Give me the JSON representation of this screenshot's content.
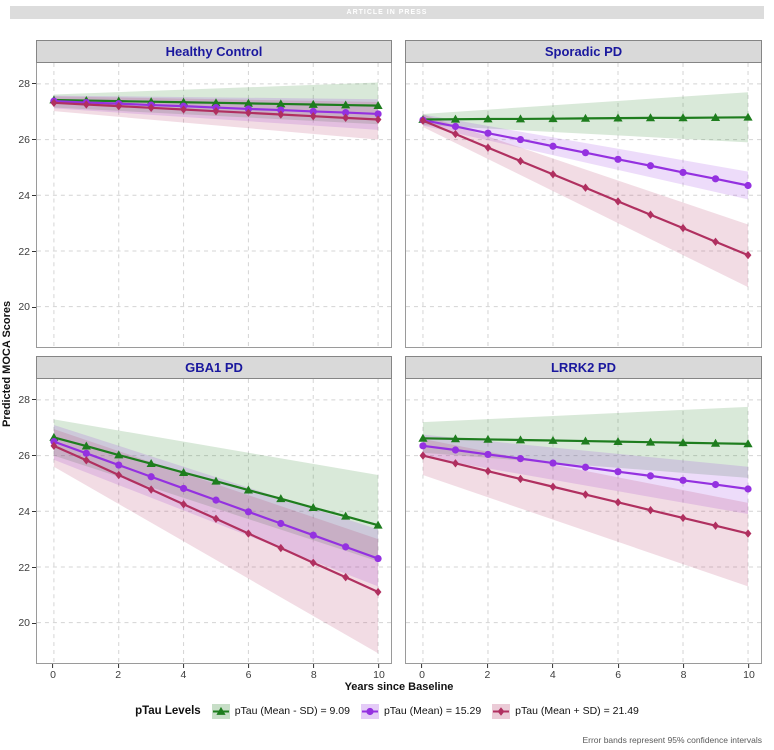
{
  "page": {
    "banner": "ARTICLE IN PRESS",
    "footnote": "Error bands represent 95% confidence intervals"
  },
  "chart_data": {
    "type": "line",
    "x": [
      0,
      1,
      2,
      3,
      4,
      5,
      6,
      7,
      8,
      9,
      10
    ],
    "xticks": [
      0,
      2,
      4,
      6,
      8,
      10
    ],
    "yticks": [
      20,
      22,
      24,
      26,
      28
    ],
    "ylim": [
      18.55,
      28.75
    ],
    "xlabel": "Years since Baseline",
    "ylabel": "Predicted MOCA Scores",
    "legend_title": "pTau Levels",
    "legend_position": "bottom",
    "grid": "dashed",
    "band_note": "Error bands represent 95% confidence intervals",
    "series_meta": [
      {
        "label": "pTau (Mean - SD) = 9.09",
        "color": "#1e7d1e",
        "marker": "triangle"
      },
      {
        "label": "pTau (Mean) = 15.29",
        "color": "#9431e0",
        "marker": "circle"
      },
      {
        "label": "pTau (Mean + SD) = 21.49",
        "color": "#b03060",
        "marker": "diamond"
      }
    ],
    "panels": [
      {
        "title": "Healthy Control",
        "series": [
          {
            "values": [
              27.42,
              27.4,
              27.38,
              27.36,
              27.34,
              27.32,
              27.3,
              27.28,
              27.26,
              27.24,
              27.22
            ],
            "band_start": [
              27.15,
              27.62
            ],
            "band_end": [
              26.55,
              28.05
            ]
          },
          {
            "values": [
              27.38,
              27.33,
              27.29,
              27.24,
              27.2,
              27.15,
              27.1,
              27.06,
              27.01,
              26.97,
              26.92
            ],
            "band_start": [
              27.12,
              27.58
            ],
            "band_end": [
              26.35,
              27.45
            ]
          },
          {
            "values": [
              27.32,
              27.26,
              27.2,
              27.14,
              27.08,
              27.02,
              26.96,
              26.9,
              26.84,
              26.78,
              26.72
            ],
            "band_start": [
              27.02,
              27.55
            ],
            "band_end": [
              26.0,
              27.35
            ]
          }
        ]
      },
      {
        "title": "Sporadic PD",
        "series": [
          {
            "values": [
              26.72,
              26.73,
              26.74,
              26.74,
              26.75,
              26.76,
              26.77,
              26.78,
              26.78,
              26.79,
              26.8
            ],
            "band_start": [
              26.52,
              26.92
            ],
            "band_end": [
              25.9,
              27.7
            ]
          },
          {
            "values": [
              26.7,
              26.47,
              26.23,
              26.0,
              25.76,
              25.53,
              25.29,
              25.06,
              24.82,
              24.59,
              24.35
            ],
            "band_start": [
              26.5,
              26.9
            ],
            "band_end": [
              23.85,
              24.85
            ]
          },
          {
            "values": [
              26.68,
              26.2,
              25.71,
              25.23,
              24.75,
              24.27,
              23.78,
              23.3,
              22.82,
              22.33,
              21.85
            ],
            "band_start": [
              26.45,
              26.9
            ],
            "band_end": [
              20.7,
              22.95
            ]
          }
        ]
      },
      {
        "title": "GBA1 PD",
        "series": [
          {
            "values": [
              26.65,
              26.34,
              26.02,
              25.71,
              25.39,
              25.08,
              24.76,
              24.45,
              24.13,
              23.82,
              23.5
            ],
            "band_start": [
              26.0,
              27.3
            ],
            "band_end": [
              22.2,
              25.3
            ]
          },
          {
            "values": [
              26.5,
              26.08,
              25.66,
              25.24,
              24.82,
              24.4,
              23.98,
              23.56,
              23.14,
              22.72,
              22.3
            ],
            "band_start": [
              25.85,
              27.1
            ],
            "band_end": [
              21.3,
              23.35
            ]
          },
          {
            "values": [
              26.35,
              25.83,
              25.3,
              24.78,
              24.25,
              23.73,
              23.2,
              22.68,
              22.15,
              21.63,
              21.1
            ],
            "band_start": [
              25.6,
              26.95
            ],
            "band_end": [
              18.9,
              23.0
            ]
          }
        ]
      },
      {
        "title": "LRRK2 PD",
        "series": [
          {
            "values": [
              26.62,
              26.6,
              26.58,
              26.56,
              26.54,
              26.52,
              26.5,
              26.48,
              26.46,
              26.44,
              26.42
            ],
            "band_start": [
              26.1,
              27.2
            ],
            "band_end": [
              25.2,
              27.75
            ]
          },
          {
            "values": [
              26.35,
              26.2,
              26.04,
              25.89,
              25.73,
              25.58,
              25.42,
              25.27,
              25.11,
              24.96,
              24.8
            ],
            "band_start": [
              25.95,
              26.75
            ],
            "band_end": [
              23.9,
              25.6
            ]
          },
          {
            "values": [
              26.0,
              25.72,
              25.44,
              25.16,
              24.88,
              24.6,
              24.32,
              24.04,
              23.76,
              23.48,
              23.2
            ],
            "band_start": [
              25.3,
              26.6
            ],
            "band_end": [
              21.3,
              24.3
            ]
          }
        ]
      }
    ]
  }
}
